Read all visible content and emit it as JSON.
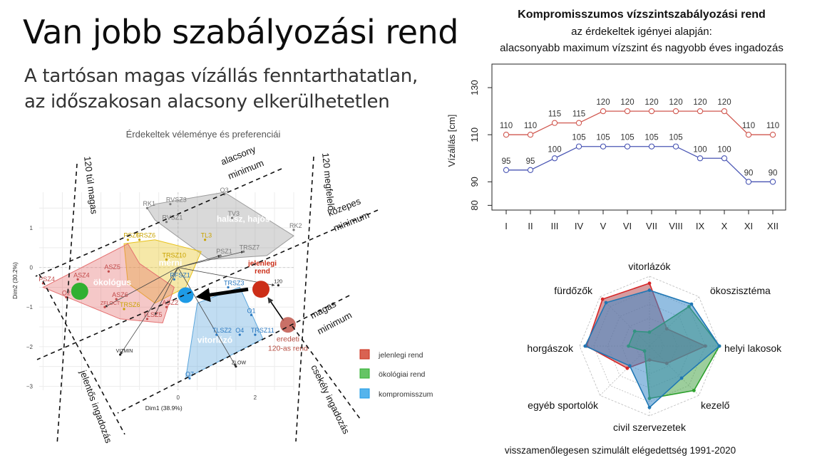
{
  "slide": {
    "title": "Van jobb szabályozási rend",
    "subtitle_line1": "A tartósan magas vízállás fenntarthatatlan,",
    "subtitle_line2": "az időszakosan alacsony elkerülhetetlen"
  },
  "chart_data": [
    {
      "type": "scatter",
      "title": "Érdekeltek véleménye és preferenciái",
      "xlabel": "Dim1 (38.9%)",
      "ylabel": "Dim2 (30.2%)",
      "xlim": [
        -3.6,
        3.0
      ],
      "ylim": [
        -3.1,
        1.9
      ],
      "xticks": [
        0,
        2
      ],
      "yticks": [
        1,
        0,
        -1,
        -2,
        -3
      ],
      "grid": true,
      "groups": [
        {
          "name": "halász, hajós",
          "color": "#9b9b9b",
          "hull": [
            [
              -0.8,
              1.5
            ],
            [
              -0.6,
              1.6
            ],
            [
              1.2,
              1.9
            ],
            [
              3.0,
              0.8
            ],
            [
              2.3,
              0.3
            ],
            [
              0.8,
              0.2
            ],
            [
              -0.6,
              1.2
            ]
          ]
        },
        {
          "name": "mérni",
          "color": "#e8c21b",
          "hull": [
            [
              -1.4,
              0.6
            ],
            [
              -0.6,
              0.7
            ],
            [
              0.6,
              0.4
            ],
            [
              0.2,
              -0.5
            ],
            [
              -0.6,
              -0.9
            ],
            [
              -1.3,
              -0.4
            ]
          ]
        },
        {
          "name": "ökológus",
          "color": "#e46f6f",
          "hull": [
            [
              -3.5,
              -0.5
            ],
            [
              -1.3,
              0.6
            ],
            [
              -1.0,
              0.1
            ],
            [
              -0.1,
              -0.5
            ],
            [
              -0.4,
              -1.4
            ],
            [
              -1.5,
              -1.3
            ]
          ]
        },
        {
          "name": "vitorlázó",
          "color": "#5ca6dc",
          "hull": [
            [
              0.5,
              -0.9
            ],
            [
              1.6,
              -0.5
            ],
            [
              2.2,
              -1.8
            ],
            [
              1.4,
              -2.2
            ],
            [
              0.2,
              -2.8
            ]
          ]
        }
      ],
      "point_labels": [
        {
          "label": "RK1",
          "x": -0.8,
          "y": 1.5
        },
        {
          "label": "RVSZ3",
          "x": -0.2,
          "y": 1.6
        },
        {
          "label": "RVSZ1",
          "x": -0.3,
          "y": 1.15
        },
        {
          "label": "O3",
          "x": 1.2,
          "y": 1.85
        },
        {
          "label": "TV3",
          "x": 1.4,
          "y": 1.25
        },
        {
          "label": "RK2",
          "x": 3.0,
          "y": 0.95
        },
        {
          "label": "PSZ1",
          "x": 1.1,
          "y": 0.3
        },
        {
          "label": "TRSZ7",
          "x": 1.7,
          "y": 0.4
        },
        {
          "label": "TL3",
          "x": 0.7,
          "y": 0.7
        },
        {
          "label": "PSZ6",
          "x": -1.3,
          "y": 0.7
        },
        {
          "label": "TRSZ6",
          "x": -1.0,
          "y": 0.7
        },
        {
          "label": "TRSZ10",
          "x": -0.3,
          "y": 0.2
        },
        {
          "label": "ASZ5",
          "x": -1.8,
          "y": -0.1
        },
        {
          "label": "ASZ4",
          "x": -2.6,
          "y": -0.3
        },
        {
          "label": "PSZ4",
          "x": -3.5,
          "y": -0.4
        },
        {
          "label": "O2",
          "x": -2.9,
          "y": -0.75
        },
        {
          "label": "ASZ6",
          "x": -1.6,
          "y": -0.8
        },
        {
          "label": "TRSZ6",
          "x": -1.4,
          "y": -1.05
        },
        {
          "label": "ZFLOCT",
          "x": -1.9,
          "y": -1.0
        },
        {
          "label": "TLSZ5",
          "x": -0.8,
          "y": -1.3
        },
        {
          "label": "ASZ2",
          "x": -0.3,
          "y": -1.0
        },
        {
          "label": "RFSZ1",
          "x": -0.1,
          "y": -0.3
        },
        {
          "label": "TRSZ3",
          "x": 1.3,
          "y": -0.5
        },
        {
          "label": "O1",
          "x": 1.9,
          "y": -1.2
        },
        {
          "label": "TLSZ2",
          "x": 1.0,
          "y": -1.7
        },
        {
          "label": "O4",
          "x": 1.6,
          "y": -1.7
        },
        {
          "label": "TRSZ11",
          "x": 2.0,
          "y": -1.7
        },
        {
          "label": "VIZMIN",
          "x": -1.5,
          "y": -2.2
        },
        {
          "label": "ZLOW",
          "x": 1.5,
          "y": -2.5
        },
        {
          "label": "O7",
          "x": 0.3,
          "y": -2.8
        },
        {
          "label": "120",
          "x": 2.6,
          "y": -0.45
        }
      ],
      "regimes": [
        {
          "name": "jelenlegi rend",
          "label": "jelenlegi\nrend",
          "x": 2.15,
          "y": -0.55,
          "color": "#cc2e18"
        },
        {
          "name": "ökológiai rend",
          "x": -2.55,
          "y": -0.6,
          "color": "#31b031"
        },
        {
          "name": "kompromisszum",
          "x": 0.2,
          "y": -0.7,
          "color": "#1e9be6"
        },
        {
          "name": "eredeti 120-as rend",
          "label": "eredeti\n120-as rend",
          "x": 2.85,
          "y": -1.45,
          "color": "#c0574c"
        }
      ],
      "annotations": [
        "120 túl magas",
        "120 megfelelő",
        "alacsony minimum",
        "közepes minimum",
        "magas minimum",
        "jelentős ingadozás",
        "csekély ingadozás"
      ],
      "legend": {
        "placement": "bottom-right",
        "items": [
          "jelenlegi rend",
          "ökológiai rend",
          "kompromisszum"
        ]
      }
    },
    {
      "type": "line",
      "title": "Kompromisszumos vízszintszabályozási rend",
      "subtitle1": "az érdekeltek igényei alapján:",
      "subtitle2": "alacsonyabb maximum vízszint és nagyobb éves ingadozás",
      "xlabel": "",
      "ylabel": "Vízállás [cm]",
      "categories": [
        "I",
        "II",
        "III",
        "IV",
        "V",
        "VI",
        "VII",
        "VIII",
        "IX",
        "X",
        "XI",
        "XII"
      ],
      "ylim": [
        78,
        140
      ],
      "yticks": [
        80,
        90,
        110,
        130
      ],
      "series": [
        {
          "color": "#d0574f",
          "values": [
            110,
            110,
            115,
            115,
            120,
            120,
            120,
            120,
            120,
            120,
            110,
            110
          ]
        },
        {
          "color": "#4a56b4",
          "values": [
            95,
            95,
            100,
            105,
            105,
            105,
            105,
            105,
            100,
            100,
            90,
            90
          ]
        }
      ]
    },
    {
      "type": "radar",
      "caption": "visszamenőlegesen szimulált elégedettség 1991-2020",
      "axes": [
        "vitorlázók",
        "ökoszisztéma",
        "helyi lakosok",
        "kezelő",
        "civil szervezetek",
        "egyéb sportolók",
        "horgászok",
        "fürdőzők"
      ],
      "rings": 5,
      "series": [
        {
          "name": "jelenlegi rend",
          "color": "#d62728",
          "fill": "#b34a52",
          "values": [
            0.9,
            0.35,
            0.8,
            0.35,
            0.2,
            0.45,
            0.9,
            0.95
          ]
        },
        {
          "name": "ökológiai rend",
          "color": "#2ca02c",
          "fill": "#4aa64a",
          "values": [
            0.2,
            0.8,
            1.0,
            0.9,
            0.75,
            0.1,
            0.3,
            0.3
          ]
        },
        {
          "name": "kompromisszum",
          "color": "#1f77b4",
          "fill": "#3a88c8",
          "values": [
            0.8,
            0.85,
            1.0,
            0.65,
            0.88,
            0.4,
            0.92,
            0.88
          ]
        }
      ]
    }
  ]
}
